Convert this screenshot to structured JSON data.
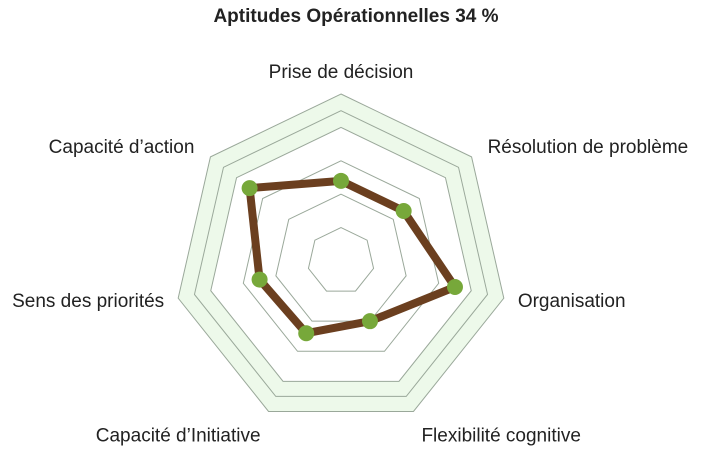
{
  "chart_data": {
    "type": "radar",
    "title": "Aptitudes Opérationnelles 34 %",
    "categories": [
      "Prise de décision",
      "Résolution de problème",
      "Organisation",
      "Flexibilité cognitive",
      "Capacité d’Initiative",
      "Sens des priorités",
      "Capacité d’action"
    ],
    "series": [
      {
        "values": [
          2.4,
          2.4,
          3.5,
          2.0,
          2.4,
          2.5,
          3.5
        ]
      }
    ],
    "range": [
      0,
      5
    ],
    "rings": [
      1,
      2,
      3,
      4,
      4.5,
      5
    ],
    "grid": true,
    "colors": {
      "line": "#6b3f1f",
      "marker": "#77a83a",
      "fill": "#edf9ea",
      "grid": "#9aa89a"
    }
  }
}
